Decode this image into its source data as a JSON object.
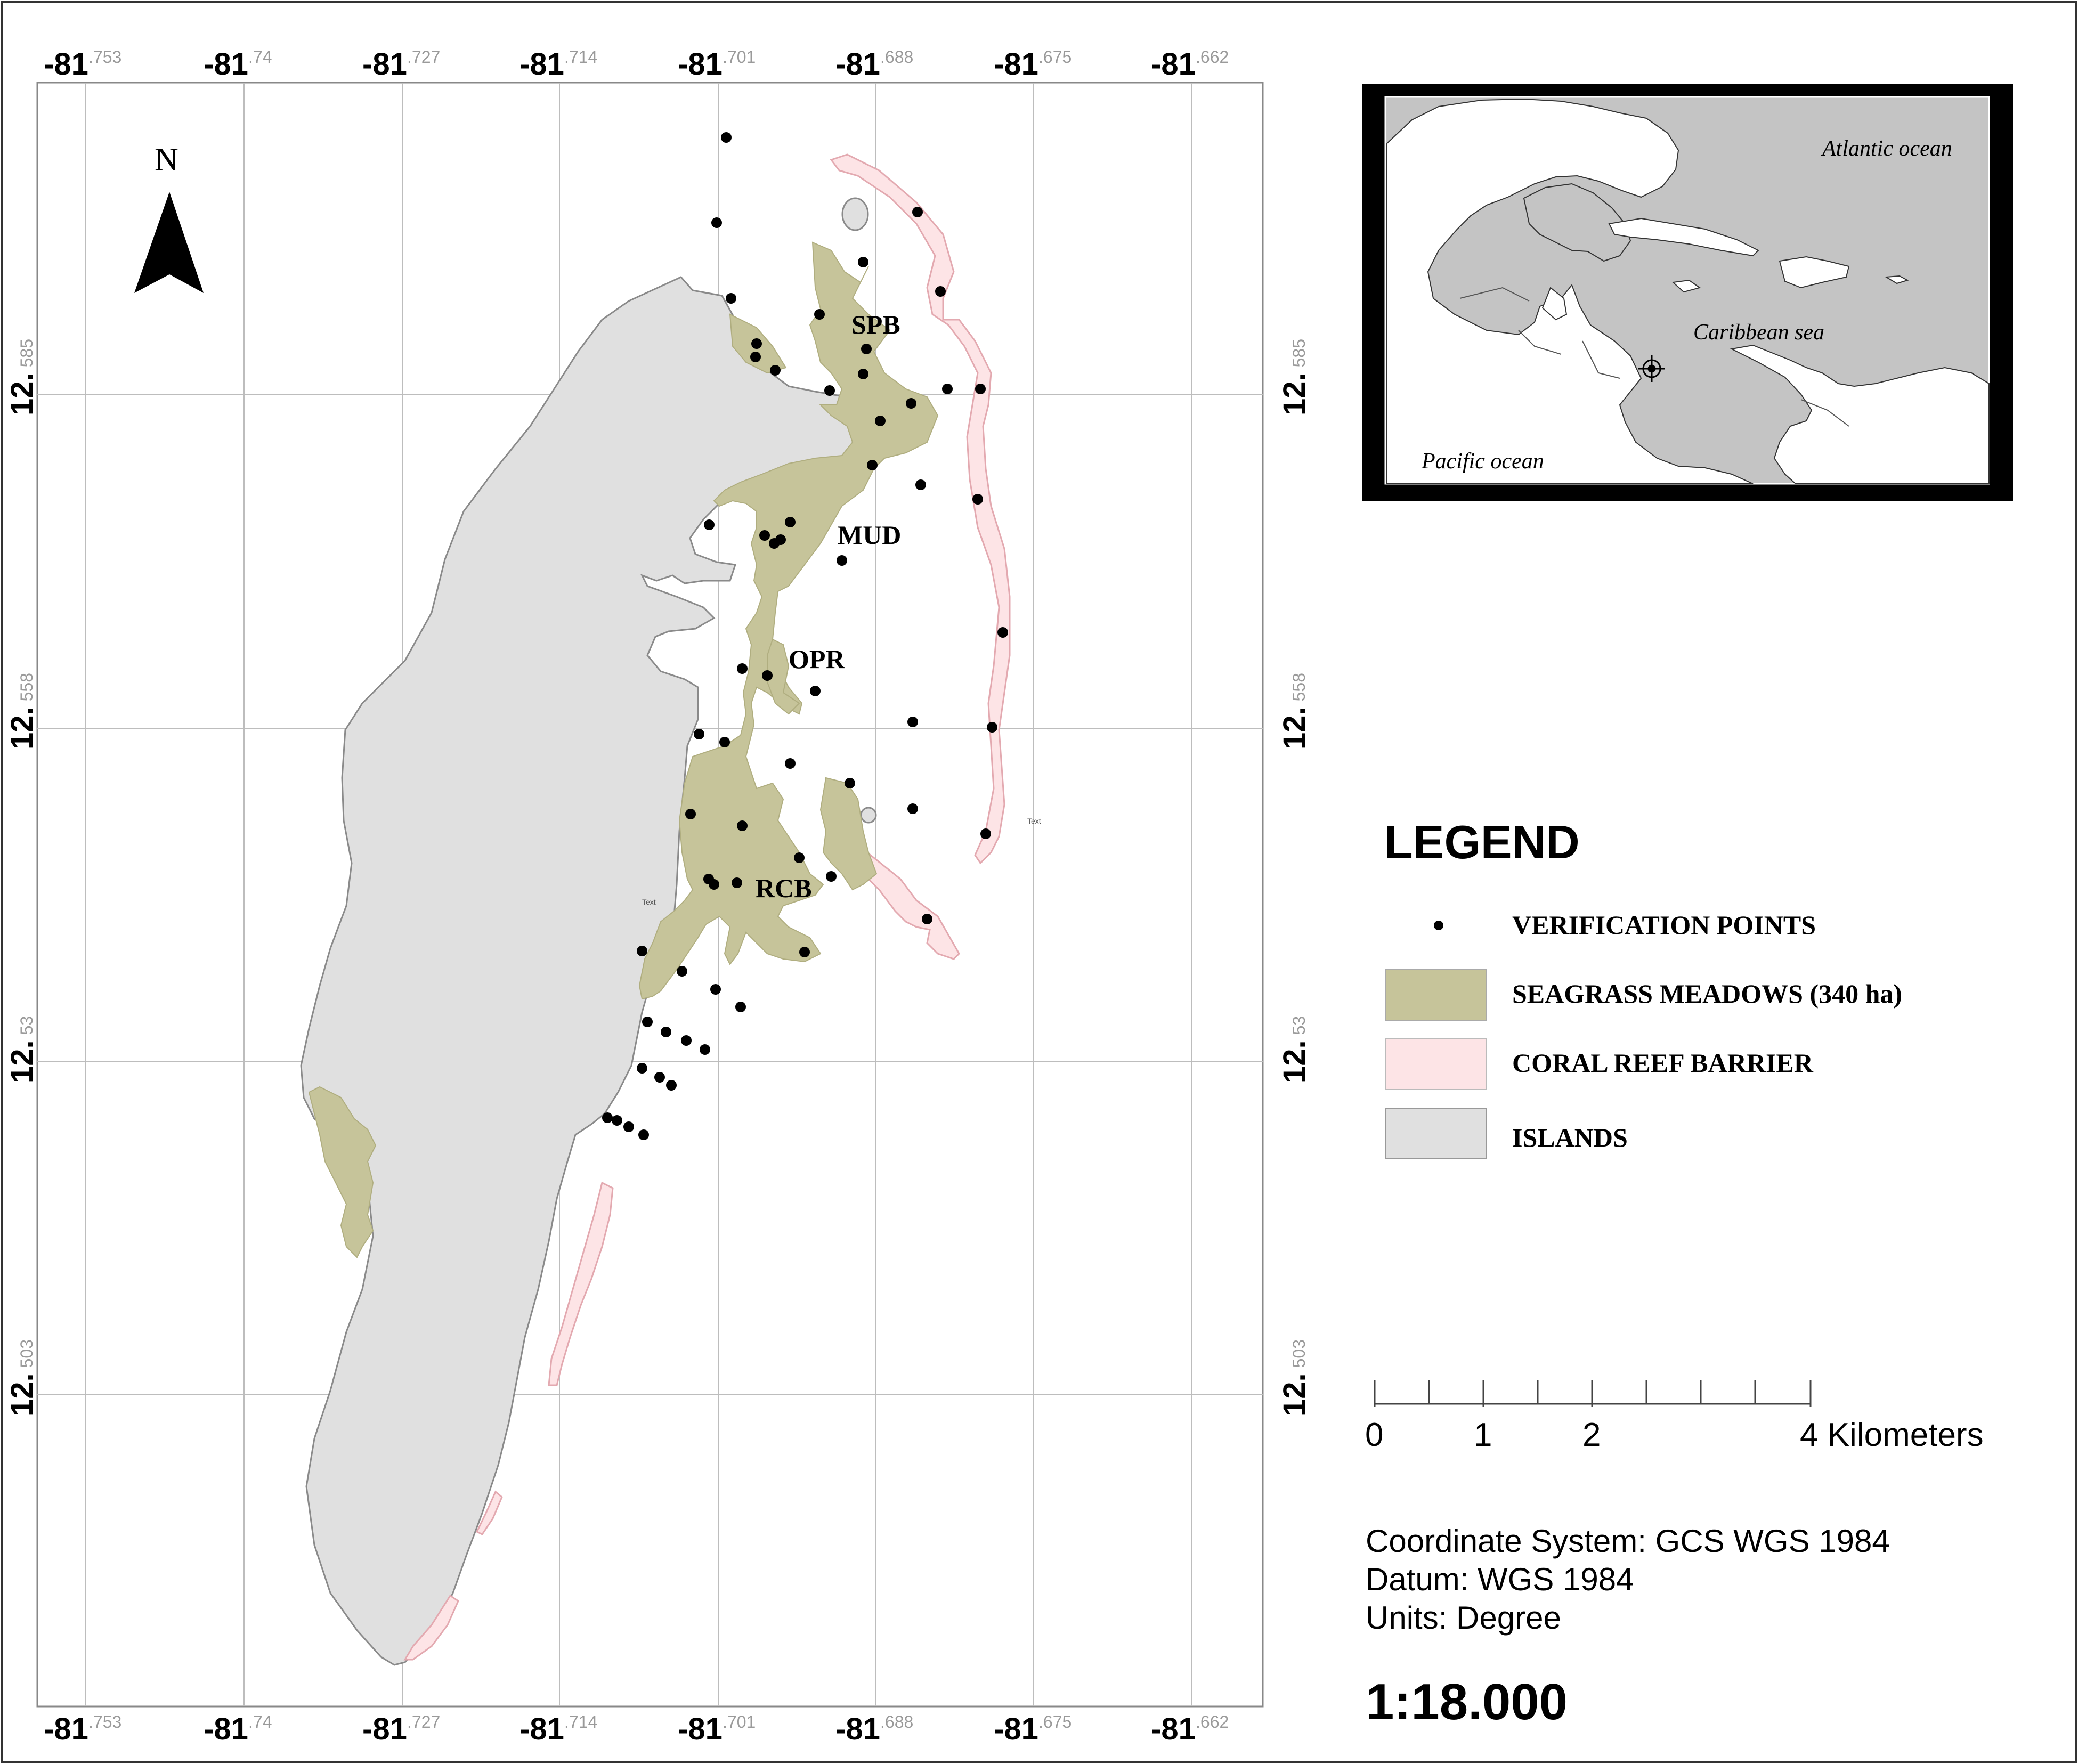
{
  "map": {
    "north_label": "N",
    "lon_ticks": [
      {
        "main": "-81",
        "sub": ".753"
      },
      {
        "main": "-81",
        "sub": ".74"
      },
      {
        "main": "-81",
        "sub": ".727"
      },
      {
        "main": "-81",
        "sub": ".714"
      },
      {
        "main": "-81",
        "sub": ".701"
      },
      {
        "main": "-81",
        "sub": ".688"
      },
      {
        "main": "-81",
        "sub": ".675"
      },
      {
        "main": "-81",
        "sub": ".662"
      }
    ],
    "lat_ticks": [
      {
        "main": "12.",
        "sub": "585"
      },
      {
        "main": "12.",
        "sub": "558"
      },
      {
        "main": "12.",
        "sub": "53"
      },
      {
        "main": "12.",
        "sub": "503"
      }
    ],
    "site_labels": {
      "spb": "SPB",
      "mud": "MUD",
      "opr": "OPR",
      "rcb": "RCB"
    },
    "stray_text_1": "Text",
    "stray_text_2": "Text"
  },
  "inset": {
    "atlantic": "Atlantic ocean",
    "caribbean": "Caribbean sea",
    "pacific": "Pacific ocean"
  },
  "legend": {
    "title": "LEGEND",
    "items": [
      {
        "label": "VERIFICATION POINTS",
        "color": "#000000"
      },
      {
        "label": "SEAGRASS MEADOWS (340 ha)",
        "color": "#c6c49a"
      },
      {
        "label": "CORAL REEF BARRIER",
        "color": "#fde4e6"
      },
      {
        "label": "ISLANDS",
        "color": "#e0e0e0"
      }
    ]
  },
  "scalebar": {
    "labels": [
      "0",
      "1",
      "2",
      "4 Kilometers"
    ]
  },
  "info": {
    "coordinate_system": "Coordinate System: GCS WGS 1984",
    "datum": "Datum: WGS 1984",
    "units": "Units: Degree"
  },
  "scale": "1:18.000"
}
